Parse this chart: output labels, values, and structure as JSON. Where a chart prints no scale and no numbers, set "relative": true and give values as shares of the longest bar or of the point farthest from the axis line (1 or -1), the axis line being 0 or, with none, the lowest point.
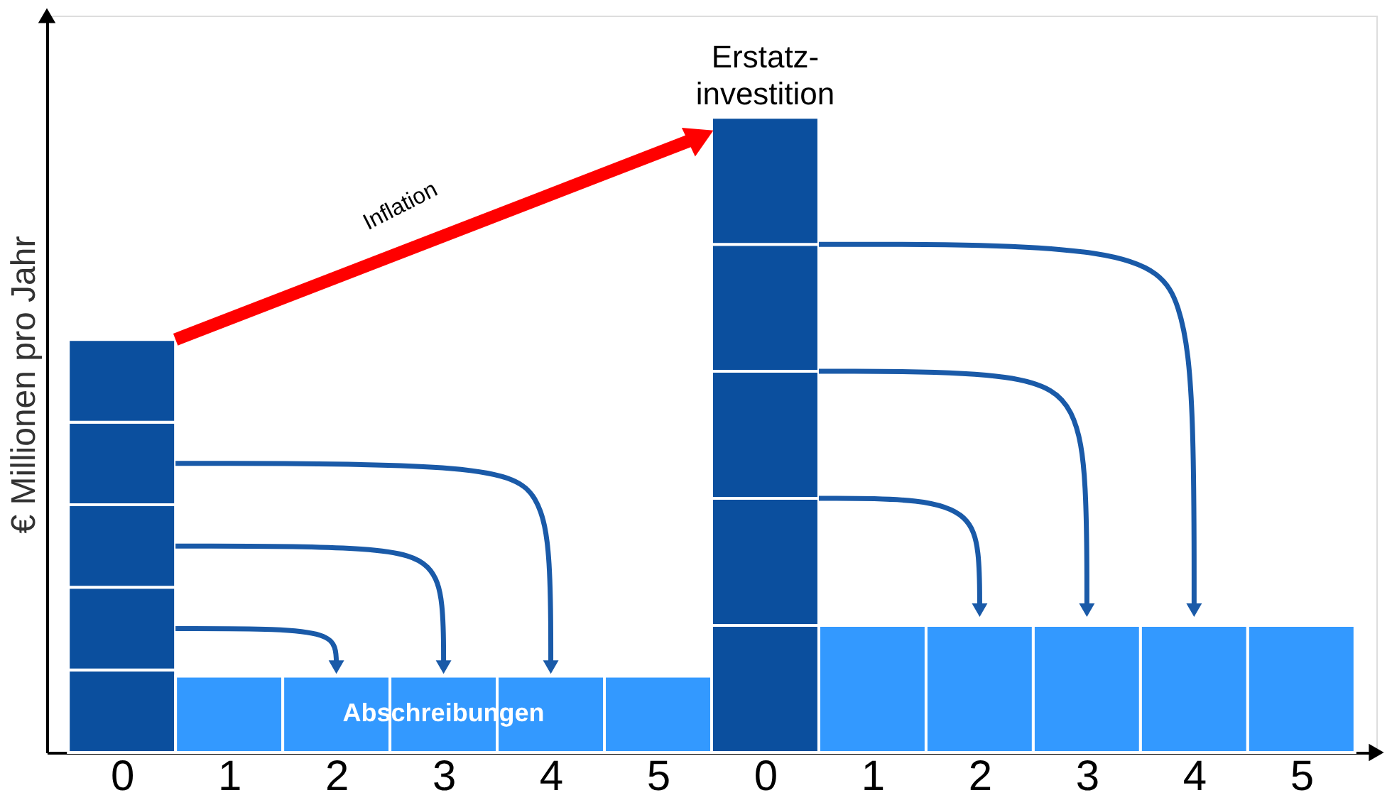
{
  "chart_data": {
    "type": "bar",
    "stacked": true,
    "relative": true,
    "ylabel": "€ Millionen pro Jahr",
    "categories": [
      "0",
      "1",
      "2",
      "3",
      "4",
      "5",
      "0",
      "1",
      "2",
      "3",
      "4",
      "5"
    ],
    "series": [
      {
        "colors": [
          "#0b4f9e",
          "#3399ff",
          "#3399ff",
          "#3399ff",
          "#3399ff",
          "#3399ff",
          "#0b4f9e",
          "#3399ff",
          "#3399ff",
          "#3399ff",
          "#3399ff",
          "#3399ff"
        ],
        "values": [
          0.13,
          0.12,
          0.12,
          0.12,
          0.12,
          0.12,
          0.2,
          0.2,
          0.2,
          0.2,
          0.2,
          0.2
        ]
      },
      {
        "color": "#0b4f9e",
        "values": [
          0.13,
          null,
          null,
          null,
          null,
          null,
          0.2,
          null,
          null,
          null,
          null,
          null
        ]
      },
      {
        "color": "#0b4f9e",
        "values": [
          0.13,
          null,
          null,
          null,
          null,
          null,
          0.2,
          null,
          null,
          null,
          null,
          null
        ]
      },
      {
        "color": "#0b4f9e",
        "values": [
          0.13,
          null,
          null,
          null,
          null,
          null,
          0.2,
          null,
          null,
          null,
          null,
          null
        ]
      },
      {
        "color": "#0b4f9e",
        "values": [
          0.13,
          null,
          null,
          null,
          null,
          null,
          0.2,
          null,
          null,
          null,
          null,
          null
        ]
      }
    ],
    "annotations": [
      "Erstatz-\ninvestition",
      "Inflation",
      "Abschreibungen"
    ],
    "grid": false
  }
}
